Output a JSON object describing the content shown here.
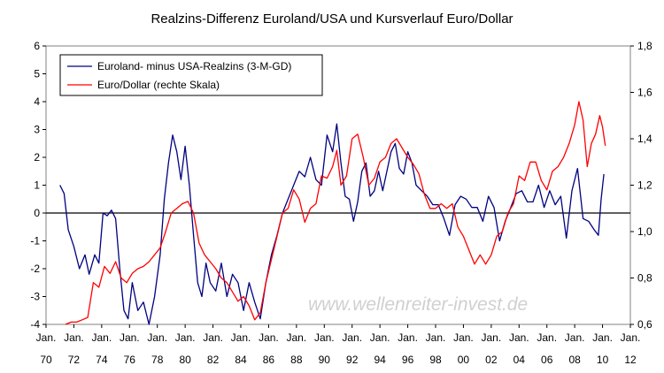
{
  "chart_data": {
    "type": "line",
    "title": "Realzins-Differenz Euroland/USA und Kursverlauf Euro/Dollar",
    "xlabel": "",
    "ylabel": "",
    "watermark": "www.wellenreiter-invest.de",
    "grid": false,
    "legend_position": "top-left",
    "xlim": [
      1970,
      2012
    ],
    "ylim_left": [
      -4,
      6
    ],
    "ylim_right": [
      0.6,
      1.8
    ],
    "x_ticks": [
      {
        "value": 1970,
        "line1": "Jan.",
        "line2": "70"
      },
      {
        "value": 1972,
        "line1": "Jan.",
        "line2": "72"
      },
      {
        "value": 1974,
        "line1": "Jan.",
        "line2": "74"
      },
      {
        "value": 1976,
        "line1": "Jan.",
        "line2": "76"
      },
      {
        "value": 1978,
        "line1": "Jan.",
        "line2": "78"
      },
      {
        "value": 1980,
        "line1": "Jan.",
        "line2": "80"
      },
      {
        "value": 1982,
        "line1": "Jan.",
        "line2": "82"
      },
      {
        "value": 1984,
        "line1": "Jan.",
        "line2": "84"
      },
      {
        "value": 1986,
        "line1": "Jan.",
        "line2": "86"
      },
      {
        "value": 1988,
        "line1": "Jan.",
        "line2": "88"
      },
      {
        "value": 1990,
        "line1": "Jan.",
        "line2": "90"
      },
      {
        "value": 1992,
        "line1": "Jan.",
        "line2": "92"
      },
      {
        "value": 1994,
        "line1": "Jan.",
        "line2": "94"
      },
      {
        "value": 1996,
        "line1": "Jan.",
        "line2": "96"
      },
      {
        "value": 1998,
        "line1": "Jan.",
        "line2": "98"
      },
      {
        "value": 2000,
        "line1": "Jan.",
        "line2": "00"
      },
      {
        "value": 2002,
        "line1": "Jan.",
        "line2": "02"
      },
      {
        "value": 2004,
        "line1": "Jan.",
        "line2": "04"
      },
      {
        "value": 2006,
        "line1": "Jan.",
        "line2": "06"
      },
      {
        "value": 2008,
        "line1": "Jan.",
        "line2": "08"
      },
      {
        "value": 2010,
        "line1": "Jan.",
        "line2": "10"
      },
      {
        "value": 2012,
        "line1": "Jan.",
        "line2": "12"
      }
    ],
    "left_ticks": [
      {
        "value": 6,
        "label": "6"
      },
      {
        "value": 5,
        "label": "5"
      },
      {
        "value": 4,
        "label": "4"
      },
      {
        "value": 3,
        "label": "3"
      },
      {
        "value": 2,
        "label": "2"
      },
      {
        "value": 1,
        "label": "1"
      },
      {
        "value": 0,
        "label": "0"
      },
      {
        "value": -1,
        "label": "-1"
      },
      {
        "value": -2,
        "label": "-2"
      },
      {
        "value": -3,
        "label": "-3"
      },
      {
        "value": -4,
        "label": "-4"
      }
    ],
    "right_ticks": [
      {
        "value": 1.8,
        "label": "1,8"
      },
      {
        "value": 1.6,
        "label": "1,6"
      },
      {
        "value": 1.4,
        "label": "1,4"
      },
      {
        "value": 1.2,
        "label": "1,2"
      },
      {
        "value": 1.0,
        "label": "1,0"
      },
      {
        "value": 0.8,
        "label": "0,8"
      },
      {
        "value": 0.6,
        "label": "0,6"
      }
    ],
    "series": [
      {
        "name": "Euroland- minus USA-Realzins (3-M-GD)",
        "axis": "left",
        "color": "#000080",
        "x": [
          1971.0,
          1971.3,
          1971.6,
          1972.0,
          1972.4,
          1972.8,
          1973.1,
          1973.5,
          1973.8,
          1974.1,
          1974.4,
          1974.7,
          1975.0,
          1975.3,
          1975.6,
          1975.9,
          1976.2,
          1976.6,
          1977.0,
          1977.4,
          1977.8,
          1978.2,
          1978.5,
          1978.8,
          1979.1,
          1979.4,
          1979.7,
          1980.0,
          1980.3,
          1980.6,
          1980.9,
          1981.2,
          1981.5,
          1981.8,
          1982.2,
          1982.6,
          1983.0,
          1983.4,
          1983.8,
          1984.2,
          1984.6,
          1985.0,
          1985.4,
          1985.8,
          1986.2,
          1986.6,
          1987.0,
          1987.4,
          1987.8,
          1988.2,
          1988.6,
          1989.0,
          1989.4,
          1989.8,
          1990.2,
          1990.6,
          1990.9,
          1991.2,
          1991.5,
          1991.8,
          1992.1,
          1992.4,
          1992.7,
          1993.0,
          1993.3,
          1993.6,
          1993.9,
          1994.2,
          1994.5,
          1994.8,
          1995.1,
          1995.4,
          1995.7,
          1996.0,
          1996.3,
          1996.6,
          1997.0,
          1997.4,
          1997.8,
          1998.2,
          1998.6,
          1999.0,
          1999.4,
          1999.8,
          2000.2,
          2000.6,
          2001.0,
          2001.4,
          2001.8,
          2002.2,
          2002.6,
          2003.0,
          2003.4,
          2003.8,
          2004.2,
          2004.6,
          2005.0,
          2005.4,
          2005.8,
          2006.2,
          2006.6,
          2007.0,
          2007.4,
          2007.8,
          2008.2,
          2008.6,
          2009.0,
          2009.4,
          2009.7,
          2009.9,
          2010.1
        ],
        "values": [
          1.0,
          0.7,
          -0.6,
          -1.2,
          -2.0,
          -1.5,
          -2.2,
          -1.5,
          -1.8,
          0.0,
          -0.1,
          0.1,
          -0.2,
          -2.0,
          -3.5,
          -3.8,
          -2.5,
          -3.5,
          -3.2,
          -4.0,
          -3.0,
          -1.5,
          0.5,
          1.8,
          2.8,
          2.2,
          1.2,
          2.4,
          1.0,
          -0.8,
          -2.5,
          -3.0,
          -1.8,
          -2.5,
          -2.8,
          -1.8,
          -3.0,
          -2.2,
          -2.5,
          -3.5,
          -2.5,
          -3.2,
          -3.8,
          -2.5,
          -1.5,
          -0.8,
          0.0,
          0.5,
          1.0,
          1.5,
          1.3,
          2.0,
          1.2,
          1.0,
          2.8,
          2.2,
          3.2,
          1.8,
          0.6,
          0.5,
          -0.3,
          0.4,
          1.5,
          1.8,
          0.6,
          0.8,
          1.5,
          0.8,
          1.5,
          2.2,
          2.5,
          1.6,
          1.4,
          2.2,
          1.8,
          1.0,
          0.8,
          0.6,
          0.3,
          0.3,
          -0.2,
          -0.8,
          0.3,
          0.6,
          0.5,
          0.2,
          0.2,
          -0.3,
          0.6,
          0.2,
          -1.0,
          -0.3,
          0.2,
          0.7,
          0.8,
          0.4,
          0.4,
          1.0,
          0.2,
          0.8,
          0.3,
          0.6,
          -0.9,
          0.8,
          1.6,
          -0.2,
          -0.3,
          -0.6,
          -0.8,
          0.5,
          1.4
        ]
      },
      {
        "name": "Euro/Dollar (rechte Skala)",
        "axis": "right",
        "color": "#ff0000",
        "x": [
          1971.4,
          1971.8,
          1972.2,
          1972.6,
          1973.0,
          1973.4,
          1973.8,
          1974.2,
          1974.6,
          1975.0,
          1975.4,
          1975.8,
          1976.2,
          1976.6,
          1977.0,
          1977.4,
          1977.8,
          1978.2,
          1978.6,
          1979.0,
          1979.4,
          1979.8,
          1980.2,
          1980.6,
          1981.0,
          1981.4,
          1981.8,
          1982.2,
          1982.6,
          1983.0,
          1983.4,
          1983.8,
          1984.2,
          1984.6,
          1985.0,
          1985.4,
          1985.8,
          1986.2,
          1986.6,
          1987.0,
          1987.4,
          1987.8,
          1988.2,
          1988.6,
          1989.0,
          1989.4,
          1989.8,
          1990.2,
          1990.6,
          1990.9,
          1991.2,
          1991.6,
          1992.0,
          1992.4,
          1992.8,
          1993.2,
          1993.6,
          1994.0,
          1994.4,
          1994.8,
          1995.2,
          1995.6,
          1996.0,
          1996.4,
          1996.8,
          1997.2,
          1997.6,
          1998.0,
          1998.4,
          1998.8,
          1999.2,
          1999.6,
          2000.0,
          2000.4,
          2000.8,
          2001.2,
          2001.6,
          2002.0,
          2002.4,
          2002.8,
          2003.2,
          2003.6,
          2004.0,
          2004.4,
          2004.8,
          2005.2,
          2005.6,
          2006.0,
          2006.4,
          2006.8,
          2007.2,
          2007.6,
          2008.0,
          2008.3,
          2008.6,
          2008.9,
          2009.2,
          2009.5,
          2009.8,
          2010.0,
          2010.2
        ],
        "values": [
          0.6,
          0.61,
          0.61,
          0.62,
          0.63,
          0.78,
          0.76,
          0.85,
          0.82,
          0.87,
          0.8,
          0.78,
          0.82,
          0.84,
          0.85,
          0.87,
          0.9,
          0.93,
          1.0,
          1.08,
          1.1,
          1.12,
          1.13,
          1.08,
          0.95,
          0.9,
          0.87,
          0.84,
          0.8,
          0.78,
          0.74,
          0.7,
          0.72,
          0.68,
          0.62,
          0.65,
          0.78,
          0.88,
          0.98,
          1.08,
          1.1,
          1.18,
          1.14,
          1.04,
          1.1,
          1.12,
          1.24,
          1.23,
          1.28,
          1.35,
          1.2,
          1.24,
          1.4,
          1.42,
          1.32,
          1.2,
          1.23,
          1.3,
          1.32,
          1.38,
          1.4,
          1.36,
          1.32,
          1.29,
          1.25,
          1.16,
          1.1,
          1.1,
          1.12,
          1.1,
          1.12,
          1.02,
          0.98,
          0.92,
          0.86,
          0.9,
          0.86,
          0.9,
          0.98,
          1.0,
          1.08,
          1.12,
          1.24,
          1.22,
          1.3,
          1.3,
          1.22,
          1.18,
          1.26,
          1.28,
          1.32,
          1.38,
          1.46,
          1.56,
          1.48,
          1.28,
          1.38,
          1.42,
          1.5,
          1.45,
          1.37
        ]
      }
    ]
  }
}
